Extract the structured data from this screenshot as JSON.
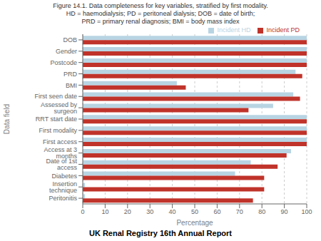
{
  "chart_data": {
    "type": "bar",
    "orientation": "horizontal",
    "title": "Figure 14.1. Data completeness for key variables, stratified by first modality.",
    "subtitle": "HD = haemodialysis; PD = peritoneal dialysis; DOB = date of birth;\nPRD = primary renal diagnosis; BMI = body mass index",
    "annotations": [
      "UK Renal Registry 16th Annual Report"
    ],
    "x_label": "Percentage",
    "y_label": "Data field",
    "categories": [
      "DOB",
      "Gender",
      "Postcode",
      "PRD",
      "BMI",
      "First seen date",
      "Assessed by surgeon",
      "RRT start date",
      "First modality",
      "First access",
      "Access at 3 months",
      "Date of 1st access",
      "Diabetes",
      "Insertion technique",
      "Peritonitis"
    ],
    "series": [
      {
        "name": "Incident HD",
        "color": "#b8d4e3",
        "values": [
          100,
          100,
          100,
          95,
          42,
          94,
          85,
          100,
          100,
          100,
          93,
          75,
          68,
          1,
          1
        ]
      },
      {
        "name": "Incident PD",
        "color": "#c0332a",
        "values": [
          100,
          100,
          100,
          98,
          46,
          97,
          74,
          100,
          100,
          100,
          91,
          87,
          81,
          81,
          76
        ]
      }
    ],
    "xlim": [
      0,
      100
    ],
    "xticks": [
      0,
      10,
      20,
      30,
      40,
      50,
      60,
      70,
      80,
      90,
      100
    ],
    "grid": true,
    "legend": "upper right"
  }
}
